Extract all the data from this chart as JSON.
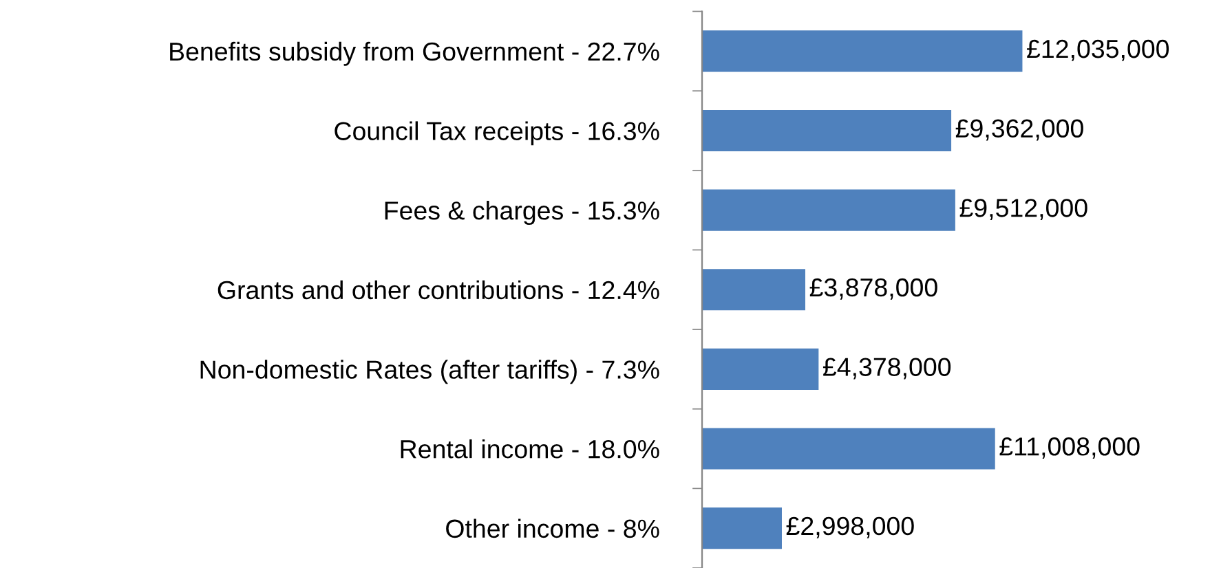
{
  "chart_data": {
    "type": "bar",
    "orientation": "horizontal",
    "categories": [
      "Benefits subsidy from Government - 22.7%",
      "Council Tax receipts - 16.3%",
      "Fees & charges - 15.3%",
      "Grants and other contributions - 12.4%",
      "Non-domestic Rates (after tariffs) - 7.3%",
      "Rental income - 18.0%",
      "Other income - 8%"
    ],
    "values": [
      12035000,
      9362000,
      9512000,
      3878000,
      4378000,
      11008000,
      2998000
    ],
    "value_labels": [
      "£12,035,000",
      "£9,362,000",
      "£9,512,000",
      "£3,878,000",
      "£4,378,000",
      "£11,008,000",
      "£2,998,000"
    ],
    "color": "#4f81bd",
    "grid": false,
    "legend": false
  }
}
